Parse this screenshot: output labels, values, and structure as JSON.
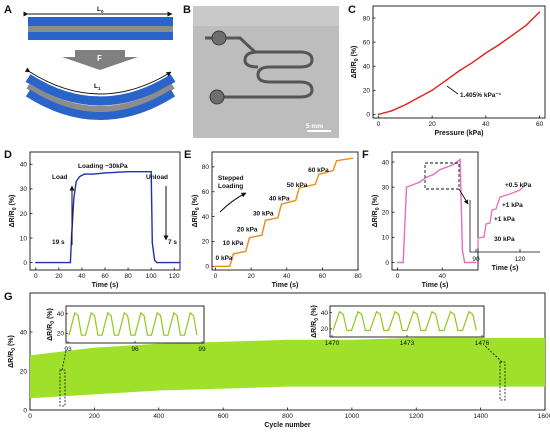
{
  "colors": {
    "blue": "#2a63c9",
    "gray": "#8c8c8c",
    "red": "#e0221b",
    "navy": "#1f2fb5",
    "orange": "#f08a18",
    "pink": "#e26fc4",
    "green": "#9ee02a",
    "green_dark": "#8fc81d"
  },
  "panels": {
    "A": {
      "label": "A",
      "L0": "L",
      "L0_sub": "0",
      "force": "F",
      "L1": "L",
      "L1_sub": "1"
    },
    "B": {
      "label": "B",
      "scale": "5 mm"
    },
    "C": {
      "label": "C",
      "annotation": "1.405% kPa⁻¹"
    },
    "D": {
      "label": "D",
      "load": "Load",
      "loading": "Loading ~30kPa",
      "unload": "Unload",
      "t_load": "19 s",
      "t_unload": "7 s"
    },
    "E": {
      "label": "E",
      "stepped": "Stepped",
      "loading": "Loading",
      "steps": [
        "0 kPa",
        "10 kPa",
        "20 kPa",
        "30 kPa",
        "40 kPa",
        "50 kPa",
        "60 kPa"
      ]
    },
    "F": {
      "label": "F",
      "inset_labels": [
        "+0.5 kPa",
        "+1 kPa",
        "+1 kPa",
        "30 kPa"
      ]
    },
    "G": {
      "label": "G"
    }
  },
  "chart_data": [
    {
      "panel": "C",
      "type": "line",
      "xlabel": "Pressure (kPa)",
      "ylabel": "ΔR/R0 (%)",
      "xlim": [
        -2,
        62
      ],
      "ylim": [
        -3,
        90
      ],
      "xticks": [
        0,
        20,
        40,
        60
      ],
      "yticks": [
        0,
        20,
        40,
        60,
        80
      ],
      "series": [
        {
          "x": [
            0,
            5,
            10,
            15,
            20,
            25,
            30,
            35,
            40,
            45,
            50,
            55,
            60
          ],
          "y": [
            0,
            3,
            8,
            14,
            20,
            28,
            36,
            43,
            51,
            58,
            66,
            74,
            85
          ]
        }
      ]
    },
    {
      "panel": "D",
      "type": "line",
      "xlabel": "Time (s)",
      "ylabel": "ΔR/R0 (%)",
      "xlim": [
        -5,
        125
      ],
      "ylim": [
        -3,
        45
      ],
      "xticks": [
        0,
        20,
        40,
        60,
        80,
        100,
        120
      ],
      "yticks": [
        0,
        10,
        20,
        30,
        40
      ],
      "series": [
        {
          "x": [
            0,
            30,
            31,
            33,
            35,
            38,
            42,
            50,
            60,
            80,
            100,
            101,
            103,
            105,
            110,
            125
          ],
          "y": [
            0,
            0,
            10,
            26,
            33,
            35,
            36,
            36,
            36.5,
            37,
            37,
            8,
            1,
            0,
            0,
            0
          ]
        }
      ]
    },
    {
      "panel": "E",
      "type": "line",
      "xlabel": "Time (s)",
      "ylabel": "ΔR/R0 (%)",
      "xlim": [
        -2,
        80
      ],
      "ylim": [
        -3,
        92
      ],
      "xticks": [
        0,
        20,
        40,
        60,
        80
      ],
      "yticks": [
        0,
        20,
        40,
        60,
        80
      ],
      "series": [
        {
          "x": [
            0,
            8,
            10,
            17,
            19,
            26,
            28,
            35,
            37,
            45,
            47,
            56,
            58,
            66,
            68,
            77
          ],
          "y": [
            0,
            0,
            10,
            12,
            23,
            25,
            37,
            39,
            50,
            53,
            63,
            66,
            74,
            77,
            85,
            87
          ]
        }
      ]
    },
    {
      "panel": "F",
      "type": "line",
      "xlabel": "Time (s)",
      "ylabel": "ΔR/R0 (%)",
      "xlim": [
        -5,
        72
      ],
      "ylim": [
        -3,
        44
      ],
      "xticks": [
        0,
        40
      ],
      "yticks": [
        0,
        10,
        20,
        30,
        40
      ],
      "inset_xticks": [
        90,
        120
      ],
      "series": [
        {
          "x": [
            0,
            5,
            8,
            14,
            20,
            26,
            32,
            38,
            44,
            50,
            56,
            58,
            60,
            70
          ],
          "y": [
            0,
            0,
            30,
            31,
            32,
            34,
            35,
            37,
            38,
            39,
            41,
            5,
            0,
            0
          ]
        }
      ]
    },
    {
      "panel": "G",
      "type": "area",
      "xlabel": "Cycle number",
      "ylabel": "ΔR/R0 (%)",
      "xlim": [
        0,
        1600
      ],
      "ylim": [
        0,
        60
      ],
      "xticks": [
        0,
        200,
        400,
        600,
        800,
        1000,
        1200,
        1400,
        1600
      ],
      "yticks": [
        0,
        20,
        40
      ],
      "series": [
        {
          "x": [
            0,
            200,
            400,
            600,
            800,
            1000,
            1200,
            1400,
            1600
          ],
          "y_low": [
            6,
            8,
            10,
            11,
            12,
            12,
            12,
            12,
            12
          ],
          "y_high": [
            28,
            32,
            34,
            35,
            36,
            36,
            37,
            37,
            37
          ]
        }
      ],
      "insets": [
        {
          "xticks": [
            93,
            96,
            99
          ],
          "yticks": [
            20,
            40
          ],
          "ylabel": "ΔR/R0 (%)"
        },
        {
          "xticks": [
            1470,
            1473,
            1476
          ],
          "yticks": [
            20,
            40
          ],
          "ylabel": "ΔR/R0 (%)"
        }
      ]
    }
  ]
}
